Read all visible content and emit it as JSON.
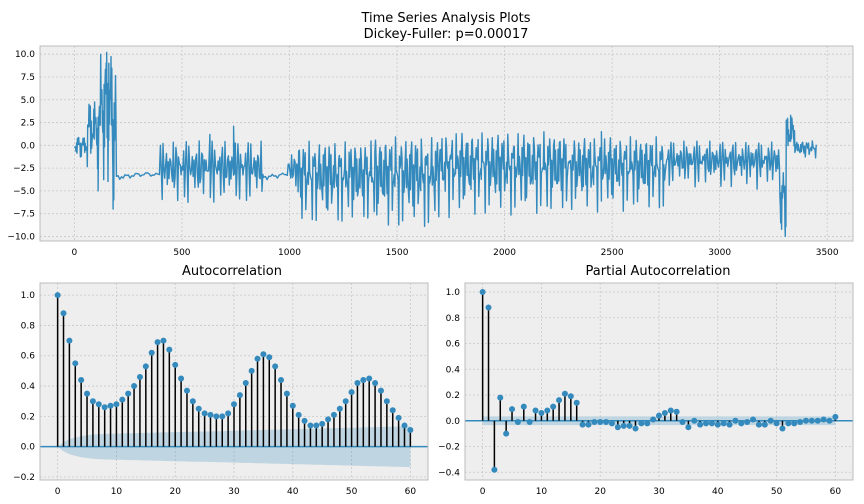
{
  "figure": {
    "title_line1": "Time Series Analysis Plots",
    "title_line2": "Dickey-Fuller: p=0.00017"
  },
  "colors": {
    "series": "#348ABD",
    "stem": "#000000",
    "band": "#348ABD",
    "axes_bg": "#EEEEEE",
    "grid": "#C8C8C8",
    "frame": "#BCBCBC"
  },
  "chart_data": [
    {
      "type": "line",
      "title": "",
      "xlim": [
        -160,
        3620
      ],
      "ylim": [
        -10.5,
        10.9
      ],
      "xticks": [
        0,
        500,
        1000,
        1500,
        2000,
        2500,
        3000,
        3500
      ],
      "yticks": [
        -10.0,
        -7.5,
        -5.0,
        -2.5,
        0.0,
        2.5,
        5.0,
        7.5,
        10.0
      ],
      "xtick_labels": [
        "0",
        "500",
        "1000",
        "1500",
        "2000",
        "2500",
        "3000",
        "3500"
      ],
      "ytick_labels": [
        "−10.0",
        "−7.5",
        "−5.0",
        "−2.5",
        "0.0",
        "2.5",
        "5.0",
        "7.5",
        "10.0"
      ],
      "grid": true,
      "segments": [
        {
          "x0": 0,
          "x1": 60,
          "lo": -1.5,
          "hi": 1.0,
          "step": 2
        },
        {
          "x0": 60,
          "x1": 120,
          "lo": -3.0,
          "hi": 5.0,
          "step": 2
        },
        {
          "x0": 120,
          "x1": 175,
          "lo": -5.0,
          "hi": 10.2,
          "step": 2
        },
        {
          "x0": 175,
          "x1": 195,
          "lo": -7.0,
          "hi": 8.0,
          "step": 2
        },
        {
          "x0": 195,
          "x1": 400,
          "lo": -3.8,
          "hi": -3.0,
          "step": 8
        },
        {
          "x0": 400,
          "x1": 880,
          "lo": -7.0,
          "hi": 0.5,
          "step": 4
        },
        {
          "x0": 880,
          "x1": 990,
          "lo": -3.8,
          "hi": -3.0,
          "step": 8
        },
        {
          "x0": 990,
          "x1": 1040,
          "lo": -5.0,
          "hi": -1.0,
          "step": 4
        },
        {
          "x0": 1040,
          "x1": 1400,
          "lo": -9.0,
          "hi": 0.5,
          "step": 3
        },
        {
          "x0": 1400,
          "x1": 1700,
          "lo": -9.5,
          "hi": 1.0,
          "step": 3
        },
        {
          "x0": 1700,
          "x1": 2300,
          "lo": -8.0,
          "hi": 1.5,
          "step": 3
        },
        {
          "x0": 2300,
          "x1": 2750,
          "lo": -7.5,
          "hi": 1.0,
          "step": 3
        },
        {
          "x0": 2750,
          "x1": 3280,
          "lo": -5.0,
          "hi": 0.5,
          "step": 4
        },
        {
          "x0": 3280,
          "x1": 3310,
          "lo": -10.0,
          "hi": -3.0,
          "step": 2
        },
        {
          "x0": 3310,
          "x1": 3350,
          "lo": -1.5,
          "hi": 3.3,
          "step": 2
        },
        {
          "x0": 3350,
          "x1": 3450,
          "lo": -1.5,
          "hi": 0.5,
          "step": 3
        }
      ],
      "spikes": [
        [
          150,
          10.2
        ],
        [
          160,
          9.0
        ],
        [
          180,
          -7.0
        ],
        [
          110,
          -5.0
        ],
        [
          630,
          1.2
        ],
        [
          740,
          2.1
        ],
        [
          2450,
          1.5
        ],
        [
          3305,
          -10.0
        ],
        [
          3330,
          3.3
        ]
      ]
    },
    {
      "type": "stem",
      "title": "Autocorrelation",
      "xlim": [
        -3,
        63
      ],
      "ylim": [
        -0.22,
        1.08
      ],
      "xticks": [
        0,
        10,
        20,
        30,
        40,
        50,
        60
      ],
      "yticks": [
        -0.2,
        0.0,
        0.2,
        0.4,
        0.6,
        0.8,
        1.0
      ],
      "xtick_labels": [
        "0",
        "10",
        "20",
        "30",
        "40",
        "50",
        "60"
      ],
      "ytick_labels": [
        "−0.2",
        "0.0",
        "0.2",
        "0.4",
        "0.6",
        "0.8",
        "1.0"
      ],
      "grid": true,
      "values": [
        1.0,
        0.88,
        0.7,
        0.55,
        0.44,
        0.35,
        0.3,
        0.28,
        0.26,
        0.27,
        0.28,
        0.31,
        0.35,
        0.4,
        0.46,
        0.53,
        0.62,
        0.69,
        0.7,
        0.64,
        0.54,
        0.45,
        0.37,
        0.3,
        0.25,
        0.22,
        0.21,
        0.2,
        0.2,
        0.22,
        0.28,
        0.34,
        0.42,
        0.5,
        0.58,
        0.61,
        0.59,
        0.53,
        0.44,
        0.35,
        0.27,
        0.21,
        0.17,
        0.14,
        0.14,
        0.15,
        0.18,
        0.21,
        0.25,
        0.3,
        0.36,
        0.42,
        0.44,
        0.45,
        0.42,
        0.37,
        0.3,
        0.24,
        0.19,
        0.14,
        0.11
      ],
      "confint_upper": [
        0.0,
        0.03,
        0.05,
        0.06,
        0.07,
        0.075,
        0.08,
        0.082,
        0.084,
        0.085,
        0.086,
        0.087,
        0.088,
        0.089,
        0.09,
        0.091,
        0.092,
        0.093,
        0.094,
        0.095,
        0.096,
        0.097,
        0.098,
        0.099,
        0.1,
        0.1,
        0.101,
        0.102,
        0.103,
        0.104,
        0.105,
        0.106,
        0.107,
        0.108,
        0.109,
        0.11,
        0.111,
        0.112,
        0.113,
        0.114,
        0.115,
        0.116,
        0.117,
        0.118,
        0.119,
        0.12,
        0.121,
        0.122,
        0.123,
        0.124,
        0.125,
        0.126,
        0.127,
        0.128,
        0.129,
        0.13,
        0.131,
        0.132,
        0.133,
        0.134,
        0.135
      ]
    },
    {
      "type": "stem",
      "title": "Partial Autocorrelation",
      "xlim": [
        -3,
        63
      ],
      "ylim": [
        -0.46,
        1.07
      ],
      "xticks": [
        0,
        10,
        20,
        30,
        40,
        50,
        60
      ],
      "yticks": [
        -0.4,
        -0.2,
        0.0,
        0.2,
        0.4,
        0.6,
        0.8,
        1.0
      ],
      "xtick_labels": [
        "0",
        "10",
        "20",
        "30",
        "40",
        "50",
        "60"
      ],
      "ytick_labels": [
        "−0.4",
        "−0.2",
        "0.0",
        "0.2",
        "0.4",
        "0.6",
        "0.8",
        "1.0"
      ],
      "grid": true,
      "values": [
        1.0,
        0.88,
        -0.38,
        0.18,
        -0.1,
        0.09,
        -0.01,
        0.11,
        -0.01,
        0.08,
        0.06,
        0.08,
        0.11,
        0.16,
        0.21,
        0.19,
        0.14,
        -0.03,
        -0.03,
        -0.01,
        -0.01,
        -0.01,
        -0.02,
        -0.05,
        -0.04,
        -0.04,
        -0.06,
        -0.02,
        -0.02,
        0.01,
        0.04,
        0.06,
        0.08,
        0.07,
        -0.01,
        -0.05,
        0.0,
        -0.03,
        -0.02,
        -0.02,
        -0.03,
        -0.02,
        -0.03,
        0.0,
        -0.02,
        -0.01,
        0.01,
        -0.03,
        -0.03,
        0.0,
        -0.02,
        -0.06,
        -0.02,
        -0.02,
        -0.01,
        0.0,
        0.0,
        0.0,
        0.01,
        0.0,
        0.03
      ],
      "confint_upper": 0.034
    }
  ]
}
